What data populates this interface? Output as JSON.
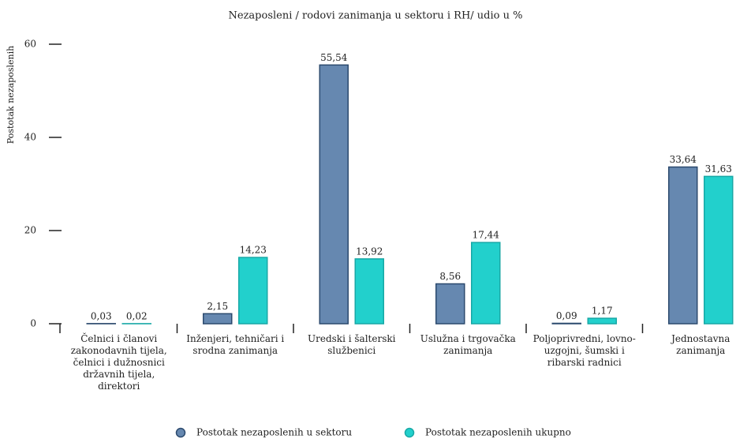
{
  "chart_data": {
    "type": "bar",
    "title": "Nezaposleni / rodovi zanimanja u sektoru i RH/ udio u %",
    "y_label": "Postotak nezaposlenih",
    "categories": [
      "Čelnici i članovi zakonodavnih tijela, čelnici i dužnosnici državnih tijela, direktori",
      "Inženjeri, tehničari i srodna zanimanja",
      "Uredski i šalterski službenici",
      "Uslužna i trgovačka zanimanja",
      "Poljoprivredni, lovno-uzgojni, šumski i ribarski radnici",
      "Jednostavna zanimanja"
    ],
    "series": [
      {
        "name": "Postotak nezaposlenih u sektoru",
        "color": "#6688b0",
        "edge": "#2c4a6e",
        "values": [
          0.03,
          2.15,
          55.54,
          8.56,
          0.09,
          33.64
        ],
        "value_labels": [
          "0,03",
          "2,15",
          "55,54",
          "8,56",
          "0,09",
          "33,64"
        ]
      },
      {
        "name": "Postotak nezaposlenih ukupno",
        "color": "#22d0cc",
        "edge": "#18a8a6",
        "values": [
          0.02,
          14.23,
          13.92,
          17.44,
          1.17,
          31.63
        ],
        "value_labels": [
          "0,02",
          "14,23",
          "13,92",
          "17,44",
          "1,17",
          "31,63"
        ]
      }
    ],
    "ylim": [
      0,
      60
    ],
    "yticks": [
      0,
      20,
      40,
      60
    ],
    "legend": "bottom"
  }
}
